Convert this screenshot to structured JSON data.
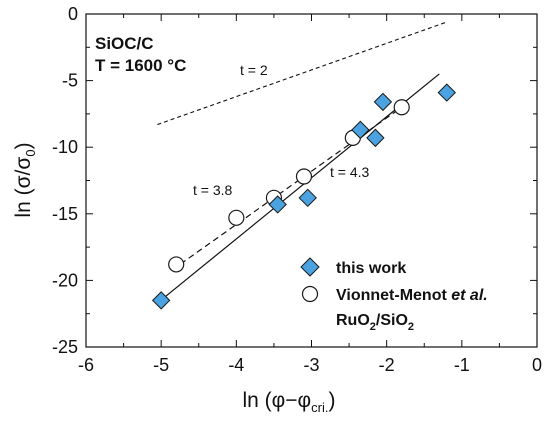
{
  "chart_data": {
    "type": "scatter",
    "xlabel": "ln (φ−φ",
    "xlabel_sub": "cri.",
    "xlabel_close": ")",
    "ylabel": "ln (σ/σ",
    "ylabel_sub": "0",
    "ylabel_close": ")",
    "xlim": [
      -6,
      0
    ],
    "ylim": [
      -25,
      0
    ],
    "xticks": [
      -6,
      -5,
      -4,
      -3,
      -2,
      -1,
      0
    ],
    "yticks": [
      -25,
      -20,
      -15,
      -10,
      -5,
      0
    ],
    "xtick_labels": [
      "-6",
      "-5",
      "-4",
      "-3",
      "-2",
      "-1",
      "0"
    ],
    "ytick_labels": [
      "-25",
      "-20",
      "-15",
      "-10",
      "-5",
      "0"
    ],
    "grid": false,
    "legend_position": "bottom-right",
    "inset_title_line1": "SiOC/C",
    "inset_title_line2": "T = 1600 °C",
    "series": [
      {
        "name": "this work",
        "marker": "diamond",
        "color": "#4aa3e0",
        "x": [
          -5.0,
          -3.45,
          -3.05,
          -2.35,
          -2.15,
          -2.05,
          -1.2
        ],
        "y": [
          -21.5,
          -14.3,
          -13.8,
          -8.7,
          -9.3,
          -6.6,
          -5.9
        ]
      },
      {
        "name": "Vionnet-Menot et al.",
        "name_line2": "RuO2/SiO2",
        "marker": "circle",
        "color": "#ffffff",
        "x": [
          -4.8,
          -4.0,
          -3.5,
          -3.1,
          -2.45,
          -1.8
        ],
        "y": [
          -18.8,
          -15.3,
          -13.8,
          -12.2,
          -9.3,
          -7.0
        ]
      }
    ],
    "lines": [
      {
        "label": "t = 4.3",
        "style": "solid",
        "x": [
          -5.05,
          -1.3
        ],
        "y": [
          -21.7,
          -4.5
        ]
      },
      {
        "label": "t = 3.8",
        "style": "dashed",
        "x": [
          -4.85,
          -1.75
        ],
        "y": [
          -19.2,
          -6.8
        ]
      },
      {
        "label": "t = 2",
        "style": "dotted",
        "x": [
          -5.05,
          -1.2
        ],
        "y": [
          -8.3,
          -0.6
        ]
      }
    ]
  }
}
